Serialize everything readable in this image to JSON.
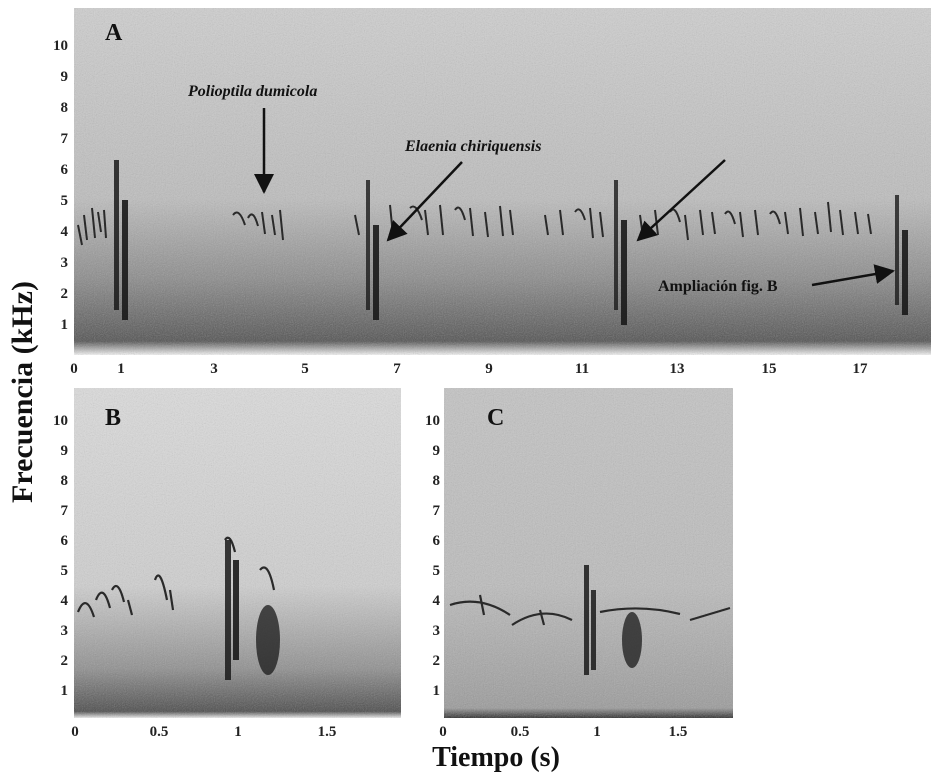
{
  "figure": {
    "ylabel": "Frecuencia (kHz)",
    "xlabel": "Tiempo (s)"
  },
  "panels": [
    {
      "label": "A",
      "yticks": [
        "1",
        "2",
        "3",
        "4",
        "5",
        "6",
        "7",
        "8",
        "9",
        "10"
      ],
      "xticks": [
        "0",
        "1",
        "3",
        "5",
        "7",
        "9",
        "11",
        "13",
        "15",
        "17"
      ],
      "annotations": [
        {
          "text": "Polioptila dumicola",
          "italic": true
        },
        {
          "text": "Elaenia chiriquensis",
          "italic": true
        },
        {
          "text": "Ampliación fig. B",
          "italic": false
        }
      ]
    },
    {
      "label": "B",
      "yticks": [
        "1",
        "2",
        "3",
        "4",
        "5",
        "6",
        "7",
        "8",
        "9",
        "10"
      ],
      "xticks": [
        "0",
        "0.5",
        "1",
        "1.5"
      ]
    },
    {
      "label": "C",
      "yticks": [
        "1",
        "2",
        "3",
        "4",
        "5",
        "6",
        "7",
        "8",
        "9",
        "10"
      ],
      "xticks": [
        "0",
        "0.5",
        "1",
        "1.5"
      ]
    }
  ],
  "colors": {
    "noise_bg": "#d9d9d9",
    "dark": "#222222"
  }
}
